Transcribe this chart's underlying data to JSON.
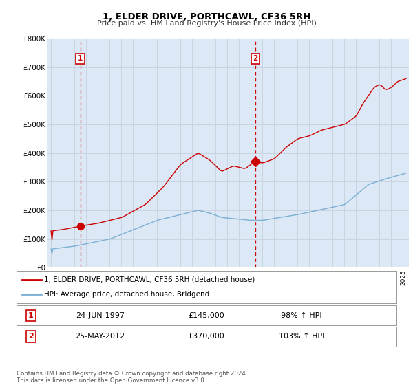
{
  "title": "1, ELDER DRIVE, PORTHCAWL, CF36 5RH",
  "subtitle": "Price paid vs. HM Land Registry's House Price Index (HPI)",
  "legend_line1": "1, ELDER DRIVE, PORTHCAWL, CF36 5RH (detached house)",
  "legend_line2": "HPI: Average price, detached house, Bridgend",
  "red_color": "#cc0000",
  "blue_color": "#7bafd4",
  "marker1_text": "24-JUN-1997",
  "marker1_price_str": "£145,000",
  "marker1_hpi": "98% ↑ HPI",
  "marker2_text": "25-MAY-2012",
  "marker2_price_str": "£370,000",
  "marker2_hpi": "103% ↑ HPI",
  "xmin": 1994.7,
  "xmax": 2025.5,
  "ymin": 0,
  "ymax": 800000,
  "yticks": [
    0,
    100000,
    200000,
    300000,
    400000,
    500000,
    600000,
    700000,
    800000
  ],
  "ytick_labels": [
    "£0",
    "£100K",
    "£200K",
    "£300K",
    "£400K",
    "£500K",
    "£600K",
    "£700K",
    "£800K"
  ],
  "bg_color": "#dce8f5",
  "footer": "Contains HM Land Registry data © Crown copyright and database right 2024.\nThis data is licensed under the Open Government Licence v3.0."
}
